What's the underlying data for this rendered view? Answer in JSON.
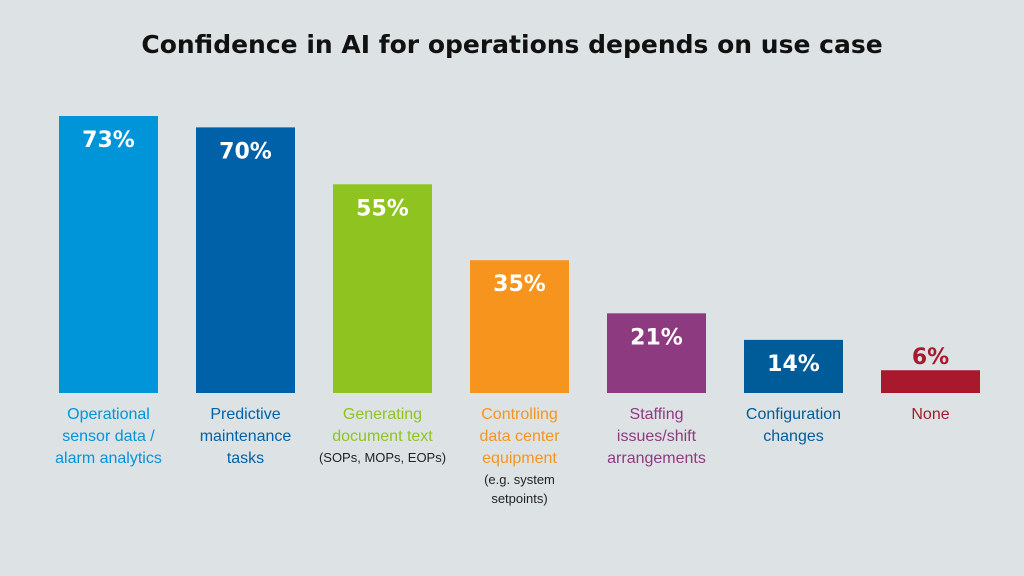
{
  "chart_data": {
    "type": "bar",
    "title": "Confidence in AI for operations depends on use case",
    "unit": "%",
    "categories": [
      {
        "label_lines": [
          "Operational",
          "sensor data /",
          "alarm analytics"
        ],
        "note_lines": []
      },
      {
        "label_lines": [
          "Predictive",
          "maintenance",
          "tasks"
        ],
        "note_lines": []
      },
      {
        "label_lines": [
          "Generating",
          "document text"
        ],
        "note_lines": [
          "(SOPs, MOPs, EOPs)"
        ]
      },
      {
        "label_lines": [
          "Controlling",
          "data center",
          "equipment"
        ],
        "note_lines": [
          "(e.g. system",
          "setpoints)"
        ]
      },
      {
        "label_lines": [
          "Staffing",
          "issues/shift",
          "arrangements"
        ],
        "note_lines": []
      },
      {
        "label_lines": [
          "Configuration",
          "changes"
        ],
        "note_lines": []
      },
      {
        "label_lines": [
          "None"
        ],
        "note_lines": []
      }
    ],
    "values": [
      73,
      70,
      55,
      35,
      21,
      14,
      6
    ],
    "value_labels": [
      "73%",
      "70%",
      "55%",
      "35%",
      "21%",
      "14%",
      "6%"
    ],
    "colors": [
      "#0095d9",
      "#0061a8",
      "#8fc31f",
      "#f7941d",
      "#8e3a80",
      "#005b99",
      "#a8192e"
    ],
    "value_label_colors": [
      "#ffffff",
      "#ffffff",
      "#ffffff",
      "#ffffff",
      "#ffffff",
      "#ffffff",
      "#a8192e"
    ],
    "ylim": [
      0,
      73
    ],
    "grid": false,
    "legend": "none"
  }
}
